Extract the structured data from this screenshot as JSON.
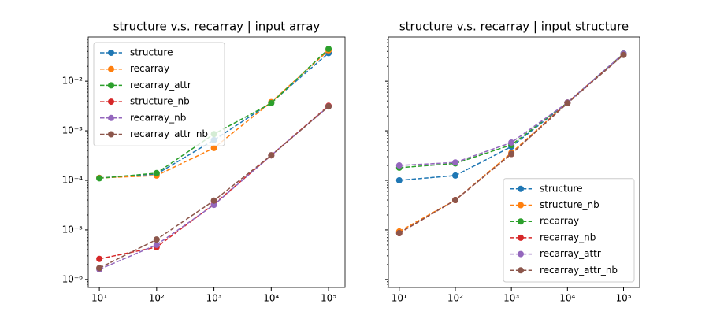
{
  "chart_data": [
    {
      "type": "line",
      "title": "structure v.s. recarray | input array",
      "x": [
        10,
        100,
        1000,
        10000,
        100000
      ],
      "series": [
        {
          "name": "structure",
          "color": "#1f77b4",
          "values": [
            0.000112,
            0.000134,
            0.00065,
            0.0037,
            0.037
          ]
        },
        {
          "name": "recarray",
          "color": "#ff7f0e",
          "values": [
            0.000112,
            0.000125,
            0.00045,
            0.0038,
            0.042
          ]
        },
        {
          "name": "recarray_attr",
          "color": "#2ca02c",
          "values": [
            0.00011,
            0.00014,
            0.00086,
            0.0036,
            0.045
          ]
        },
        {
          "name": "structure_nb",
          "color": "#d62728",
          "values": [
            2.6e-06,
            4.5e-06,
            3.3e-05,
            0.00032,
            0.0032
          ]
        },
        {
          "name": "recarray_nb",
          "color": "#9467bd",
          "values": [
            1.6e-06,
            5e-06,
            3.2e-05,
            0.00032,
            0.0031
          ]
        },
        {
          "name": "recarray_attr_nb",
          "color": "#8c564b",
          "values": [
            1.7e-06,
            6.4e-06,
            3.9e-05,
            0.00032,
            0.0031
          ]
        }
      ],
      "xlim": [
        6.4,
        194000
      ],
      "ylim": [
        6.9e-07,
        0.078
      ],
      "xticks": [
        {
          "value": 10,
          "label": "10¹"
        },
        {
          "value": 100,
          "label": "10²"
        },
        {
          "value": 1000,
          "label": "10³"
        },
        {
          "value": 10000,
          "label": "10⁴"
        },
        {
          "value": 100000,
          "label": "10⁵"
        }
      ],
      "yticks": [
        {
          "value": 1e-06,
          "label": "10⁻⁶"
        },
        {
          "value": 1e-05,
          "label": "10⁻⁵"
        },
        {
          "value": 0.0001,
          "label": "10⁻⁴"
        },
        {
          "value": 0.001,
          "label": "10⁻³"
        },
        {
          "value": 0.01,
          "label": "10⁻²"
        }
      ],
      "log_x": true,
      "log_y": true,
      "legend": "upper left"
    },
    {
      "type": "line",
      "title": "structure v.s. recarray | input structure",
      "x": [
        10,
        100,
        1000,
        10000,
        100000
      ],
      "series": [
        {
          "name": "structure",
          "color": "#1f77b4",
          "values": [
            0.0001,
            0.000125,
            0.00048,
            0.0037,
            0.036
          ]
        },
        {
          "name": "structure_nb",
          "color": "#ff7f0e",
          "values": [
            9.3e-06,
            4e-05,
            0.00036,
            0.0037,
            0.035
          ]
        },
        {
          "name": "recarray",
          "color": "#2ca02c",
          "values": [
            0.00018,
            0.00022,
            0.00052,
            0.0037,
            0.036
          ]
        },
        {
          "name": "recarray_nb",
          "color": "#d62728",
          "values": [
            8.6e-06,
            4e-05,
            0.00034,
            0.0037,
            0.035
          ]
        },
        {
          "name": "recarray_attr",
          "color": "#9467bd",
          "values": [
            0.0002,
            0.00023,
            0.00058,
            0.0037,
            0.036
          ]
        },
        {
          "name": "recarray_attr_nb",
          "color": "#8c564b",
          "values": [
            8.6e-06,
            4e-05,
            0.00034,
            0.0036,
            0.034
          ]
        }
      ],
      "xlim": [
        6.4,
        194000
      ],
      "ylim": [
        6.9e-07,
        0.078
      ],
      "xticks": [
        {
          "value": 10,
          "label": "10¹"
        },
        {
          "value": 100,
          "label": "10²"
        },
        {
          "value": 1000,
          "label": "10³"
        },
        {
          "value": 10000,
          "label": "10⁴"
        },
        {
          "value": 100000,
          "label": "10⁵"
        }
      ],
      "log_x": true,
      "log_y": true,
      "legend": "lower right"
    }
  ]
}
